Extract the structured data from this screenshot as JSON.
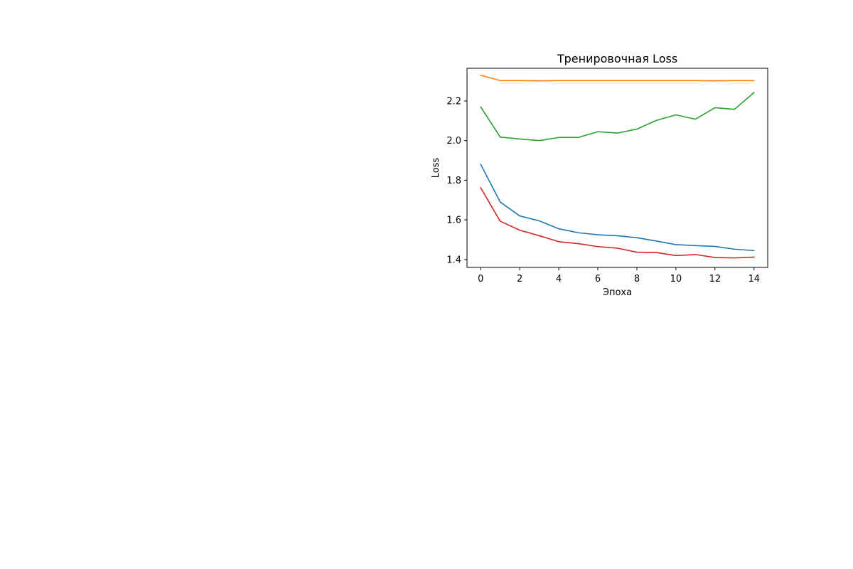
{
  "chart_data": {
    "type": "line",
    "title": "Тренировочная Loss",
    "xlabel": "Эпоха",
    "ylabel": "Loss",
    "xlim": [
      -0.7,
      14.7
    ],
    "ylim": [
      1.36,
      2.365
    ],
    "x_ticks": [
      "0",
      "2",
      "4",
      "6",
      "8",
      "10",
      "12",
      "14"
    ],
    "y_ticks": [
      "1.4",
      "1.6",
      "1.8",
      "2.0",
      "2.2"
    ],
    "grid": false,
    "x": [
      0,
      1,
      2,
      3,
      4,
      5,
      6,
      7,
      8,
      9,
      10,
      11,
      12,
      13,
      14
    ],
    "series": [
      {
        "color": "#1f77b4",
        "values": [
          1.88,
          1.69,
          1.62,
          1.595,
          1.555,
          1.535,
          1.525,
          1.52,
          1.51,
          1.493,
          1.475,
          1.47,
          1.466,
          1.452,
          1.445
        ]
      },
      {
        "color": "#ff7f0e",
        "values": [
          2.33,
          2.303,
          2.303,
          2.302,
          2.303,
          2.303,
          2.303,
          2.303,
          2.303,
          2.303,
          2.303,
          2.303,
          2.302,
          2.303,
          2.303
        ]
      },
      {
        "color": "#2ca02c",
        "values": [
          2.17,
          2.018,
          2.008,
          2.0,
          2.016,
          2.016,
          2.045,
          2.038,
          2.058,
          2.102,
          2.13,
          2.108,
          2.166,
          2.158,
          2.243
        ]
      },
      {
        "color": "#d62728",
        "values": [
          1.762,
          1.593,
          1.548,
          1.52,
          1.49,
          1.48,
          1.465,
          1.457,
          1.437,
          1.435,
          1.42,
          1.425,
          1.41,
          1.408,
          1.412
        ]
      }
    ]
  }
}
